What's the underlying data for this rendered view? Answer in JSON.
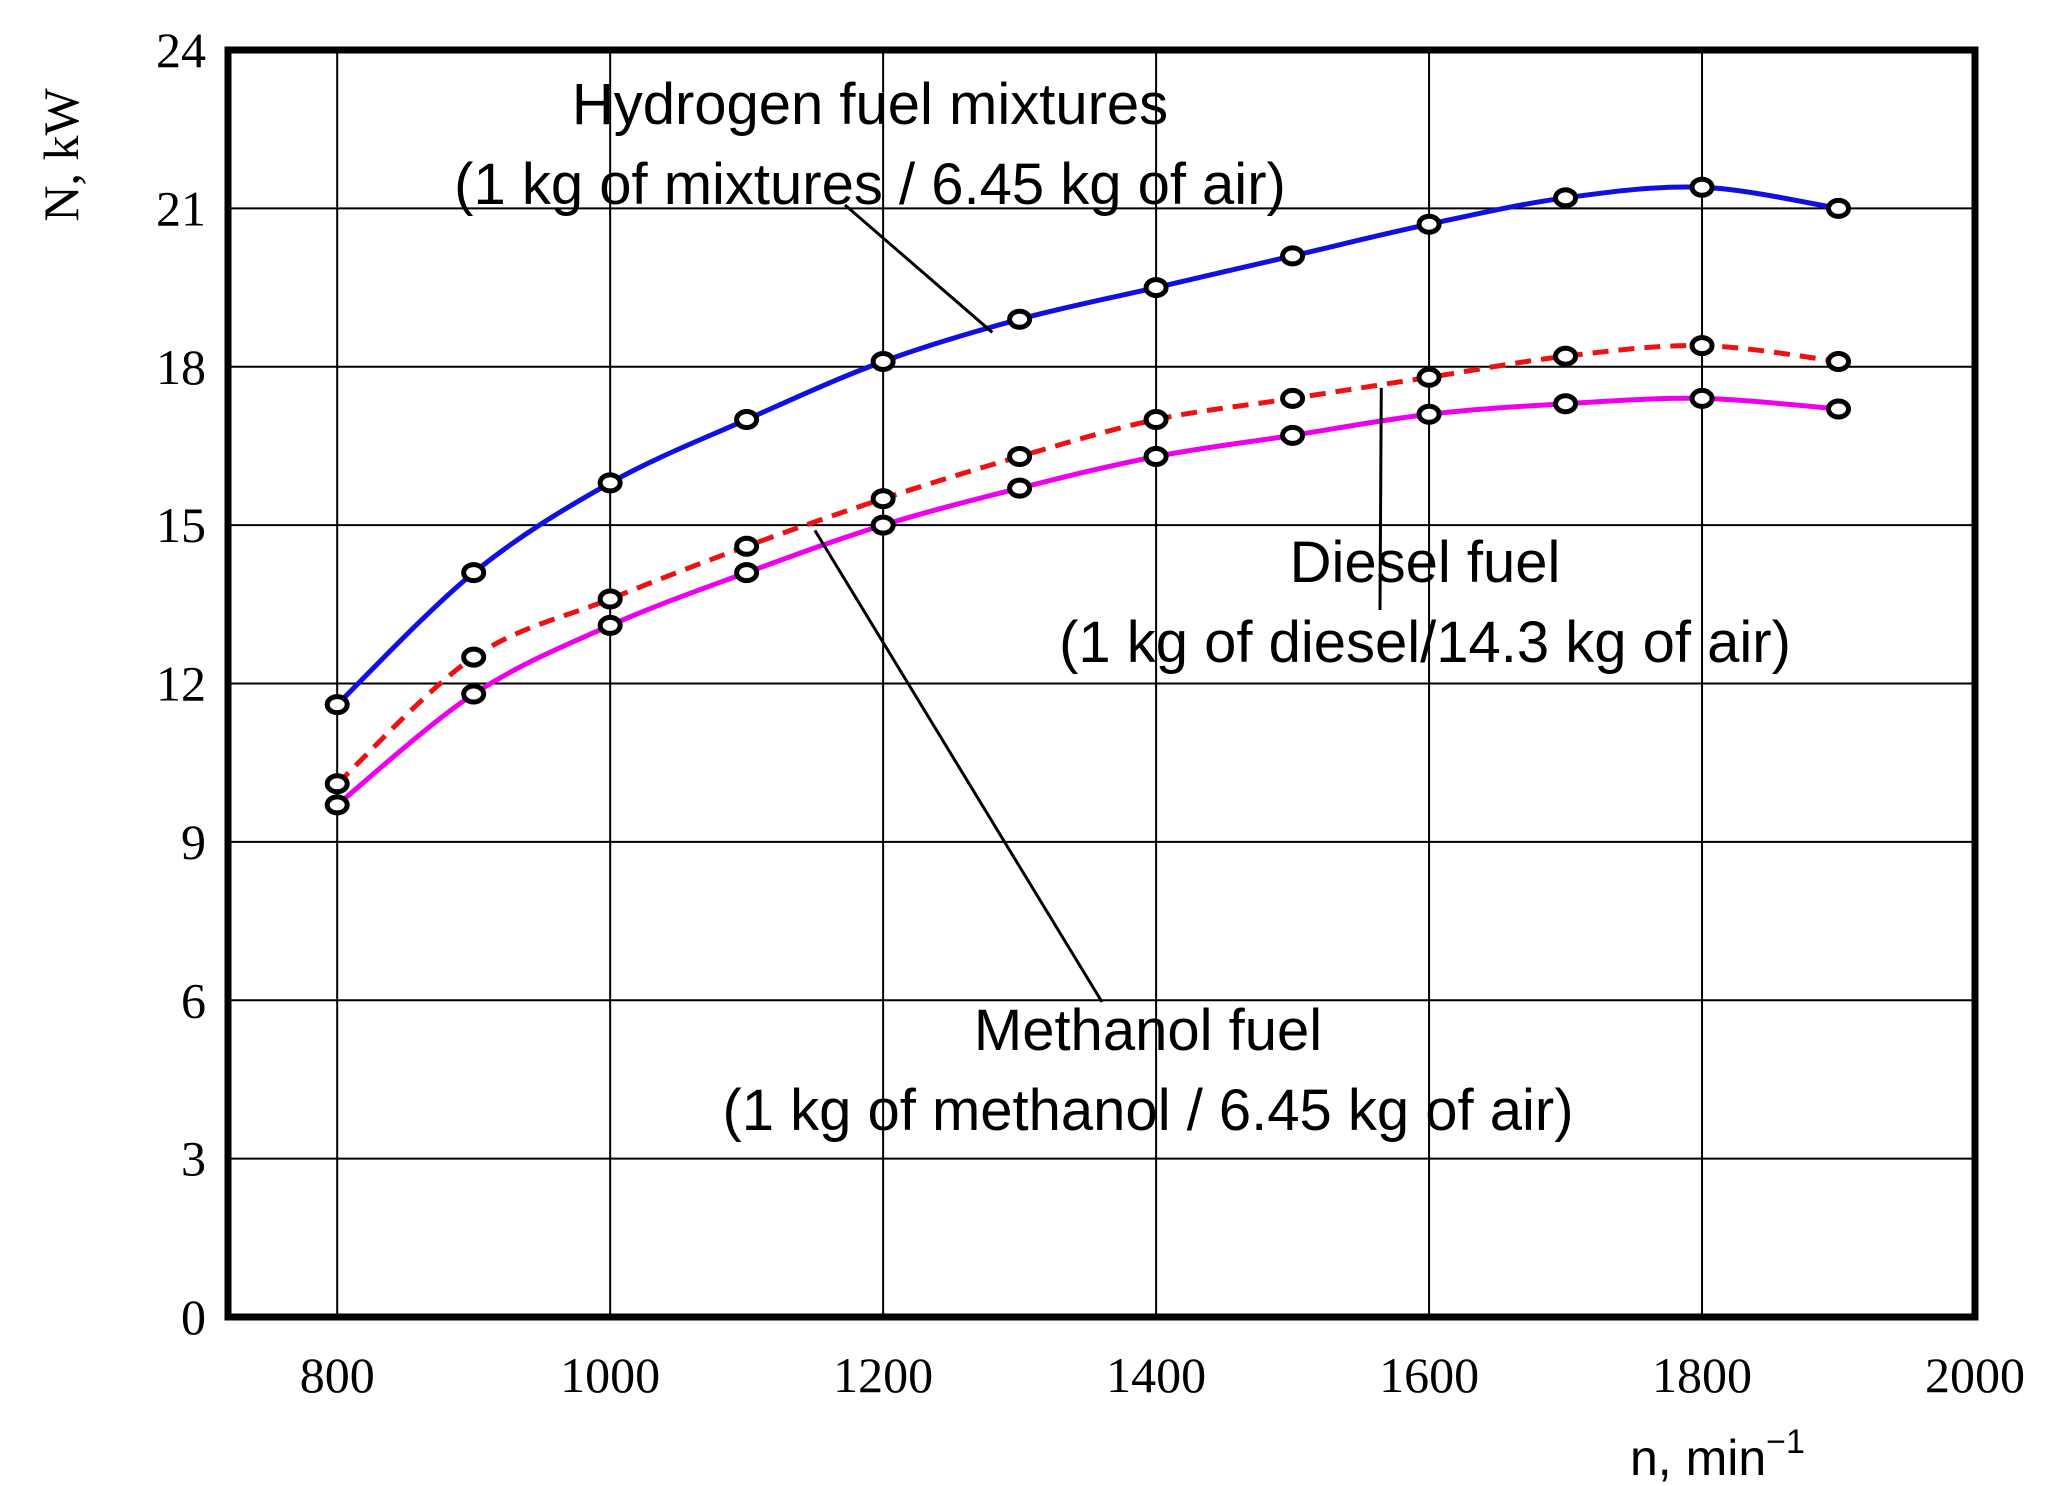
{
  "chart_data": {
    "type": "line",
    "xlabel": "n, min",
    "xlabel_sup": "−1",
    "ylabel": "N, kW",
    "xlim": [
      720,
      2000
    ],
    "ylim": [
      0,
      24
    ],
    "x_ticks": [
      800,
      1000,
      1200,
      1400,
      1600,
      1800,
      2000
    ],
    "y_ticks": [
      0,
      3,
      6,
      9,
      12,
      15,
      18,
      21,
      24
    ],
    "grid_x": [
      800,
      1000,
      1200,
      1400,
      1600,
      1800
    ],
    "grid_y": [
      3,
      6,
      9,
      12,
      15,
      18,
      21
    ],
    "grid": true,
    "legend": "none",
    "x": [
      800,
      900,
      1000,
      1100,
      1200,
      1300,
      1400,
      1500,
      1600,
      1700,
      1800,
      1900
    ],
    "series": [
      {
        "key": "hydrogen",
        "color": "#1010e0",
        "dash": "solid",
        "values": [
          11.6,
          14.1,
          15.8,
          17.0,
          18.1,
          18.9,
          19.5,
          20.1,
          20.7,
          21.2,
          21.4,
          21.0
        ]
      },
      {
        "key": "diesel",
        "color": "#ee1111",
        "dash": "dashed",
        "values": [
          10.1,
          12.5,
          13.6,
          14.6,
          15.5,
          16.3,
          17.0,
          17.4,
          17.8,
          18.2,
          18.4,
          18.1
        ]
      },
      {
        "key": "methanol",
        "color": "#ee00ee",
        "dash": "solid",
        "values": [
          9.7,
          11.8,
          13.1,
          14.1,
          15.0,
          15.7,
          16.3,
          16.7,
          17.1,
          17.3,
          17.4,
          17.2
        ]
      }
    ],
    "annotations": [
      {
        "key": "hydrogen",
        "lines": [
          "Hydrogen fuel mixtures",
          "(1 kg of mixtures / 6.45 kg of air)"
        ],
        "pointer": [
          1280,
          18.65
        ]
      },
      {
        "key": "diesel",
        "lines": [
          "Diesel fuel",
          "(1 kg of diesel/14.3 kg of air)"
        ],
        "pointer": [
          1565,
          17.6
        ]
      },
      {
        "key": "methanol",
        "lines": [
          "Methanol fuel",
          "(1 kg of methanol / 6.45 kg of air)"
        ],
        "pointer": [
          1150,
          14.9
        ]
      }
    ]
  }
}
